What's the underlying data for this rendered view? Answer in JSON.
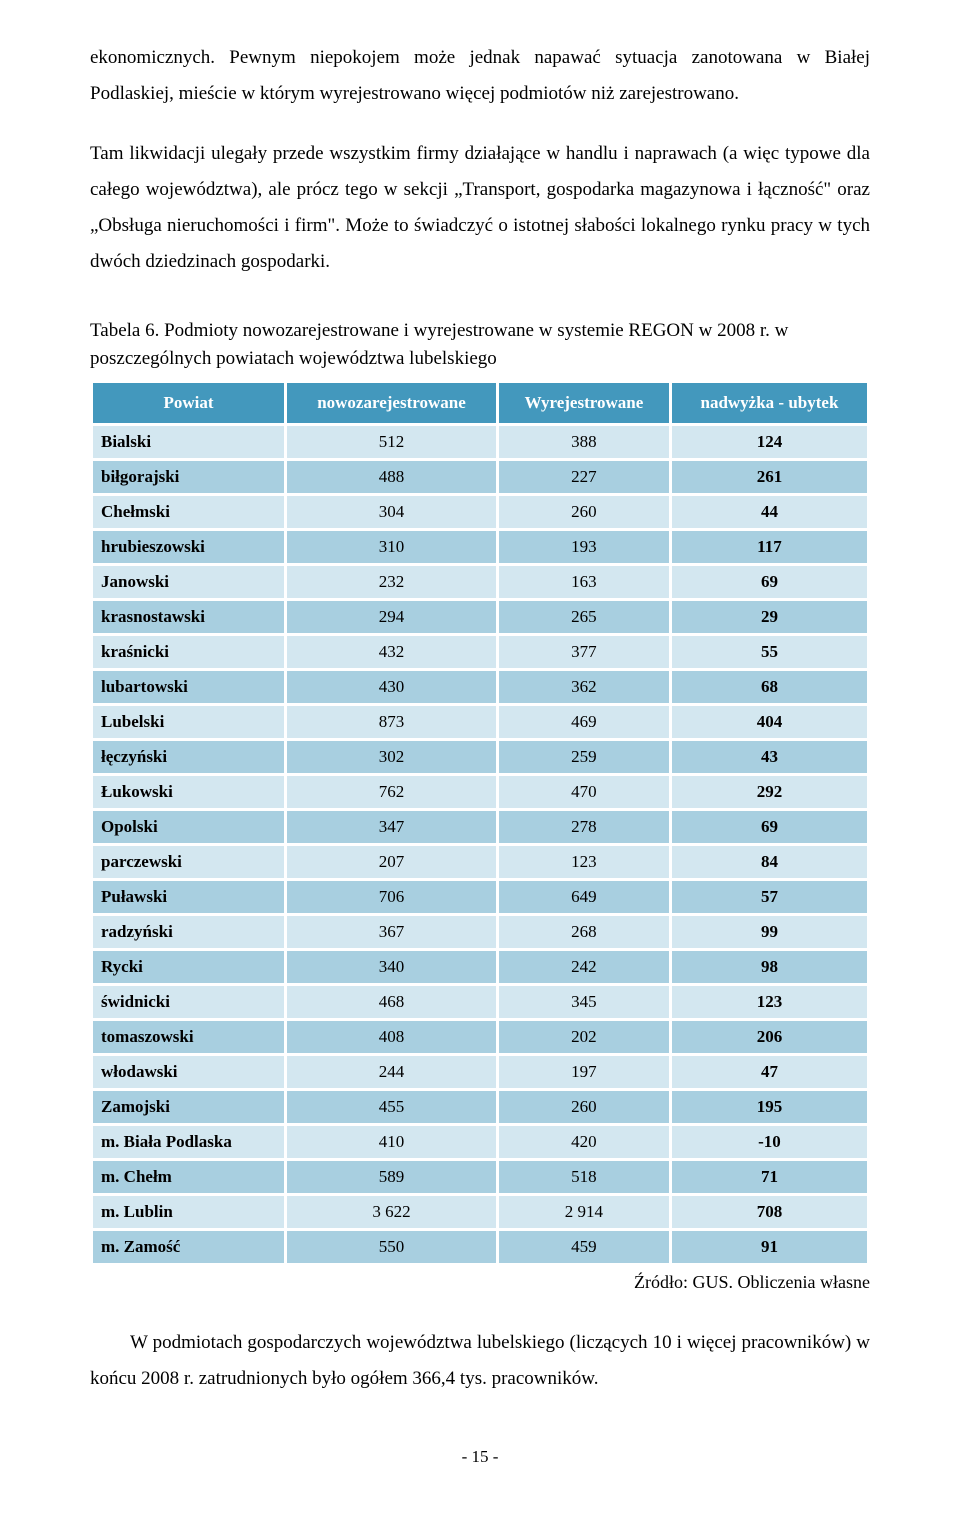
{
  "paragraphs": {
    "p1": "ekonomicznych. Pewnym niepokojem może jednak napawać sytuacja zanotowana w Białej Podlaskiej, mieście w którym wyrejestrowano więcej podmiotów niż zarejestrowano.",
    "p2": "Tam likwidacji ulegały przede wszystkim firmy działające w handlu i naprawach (a więc typowe dla całego województwa), ale prócz tego w sekcji „Transport, gospodarka magazynowa i łączność\" oraz „Obsługa nieruchomości i firm\". Może to świadczyć o istotnej słabości lokalnego rynku pracy w tych dwóch dziedzinach gospodarki."
  },
  "table_caption": "Tabela 6. Podmioty nowozarejestrowane i wyrejestrowane w systemie REGON w 2008 r. w poszczególnych powiatach województwa lubelskiego",
  "table": {
    "header_bg": "#4398bd",
    "header_fg": "#ffffff",
    "row_bg_odd": "#d3e7f0",
    "row_bg_even": "#a8cfe0",
    "columns": [
      "Powiat",
      "nowozarejestrowane",
      "Wyrejestrowane",
      "nadwyżka - ubytek"
    ],
    "rows": [
      {
        "name": "Bialski",
        "new": "512",
        "out": "388",
        "net": "124"
      },
      {
        "name": "biłgorajski",
        "new": "488",
        "out": "227",
        "net": "261"
      },
      {
        "name": "Chełmski",
        "new": "304",
        "out": "260",
        "net": "44"
      },
      {
        "name": "hrubieszowski",
        "new": "310",
        "out": "193",
        "net": "117"
      },
      {
        "name": "Janowski",
        "new": "232",
        "out": "163",
        "net": "69"
      },
      {
        "name": "krasnostawski",
        "new": "294",
        "out": "265",
        "net": "29"
      },
      {
        "name": "kraśnicki",
        "new": "432",
        "out": "377",
        "net": "55"
      },
      {
        "name": "lubartowski",
        "new": "430",
        "out": "362",
        "net": "68"
      },
      {
        "name": "Lubelski",
        "new": "873",
        "out": "469",
        "net": "404"
      },
      {
        "name": "łęczyński",
        "new": "302",
        "out": "259",
        "net": "43"
      },
      {
        "name": "Łukowski",
        "new": "762",
        "out": "470",
        "net": "292"
      },
      {
        "name": "Opolski",
        "new": "347",
        "out": "278",
        "net": "69"
      },
      {
        "name": "parczewski",
        "new": "207",
        "out": "123",
        "net": "84"
      },
      {
        "name": "Puławski",
        "new": "706",
        "out": "649",
        "net": "57"
      },
      {
        "name": "radzyński",
        "new": "367",
        "out": "268",
        "net": "99"
      },
      {
        "name": "Rycki",
        "new": "340",
        "out": "242",
        "net": "98"
      },
      {
        "name": "świdnicki",
        "new": "468",
        "out": "345",
        "net": "123"
      },
      {
        "name": "tomaszowski",
        "new": "408",
        "out": "202",
        "net": "206"
      },
      {
        "name": "włodawski",
        "new": "244",
        "out": "197",
        "net": "47"
      },
      {
        "name": "Zamojski",
        "new": "455",
        "out": "260",
        "net": "195"
      },
      {
        "name": "m. Biała Podlaska",
        "new": "410",
        "out": "420",
        "net": "-10"
      },
      {
        "name": "m. Chełm",
        "new": "589",
        "out": "518",
        "net": "71"
      },
      {
        "name": "m. Lublin",
        "new": "3 622",
        "out": "2 914",
        "net": "708"
      },
      {
        "name": "m. Zamość",
        "new": "550",
        "out": "459",
        "net": "91"
      }
    ]
  },
  "source": "Źródło: GUS. Obliczenia własne",
  "footer_paragraph": "W podmiotach gospodarczych województwa lubelskiego (liczących 10 i więcej pracowników) w końcu 2008 r. zatrudnionych było ogółem 366,4 tys. pracowników.",
  "page_number": "- 15 -"
}
